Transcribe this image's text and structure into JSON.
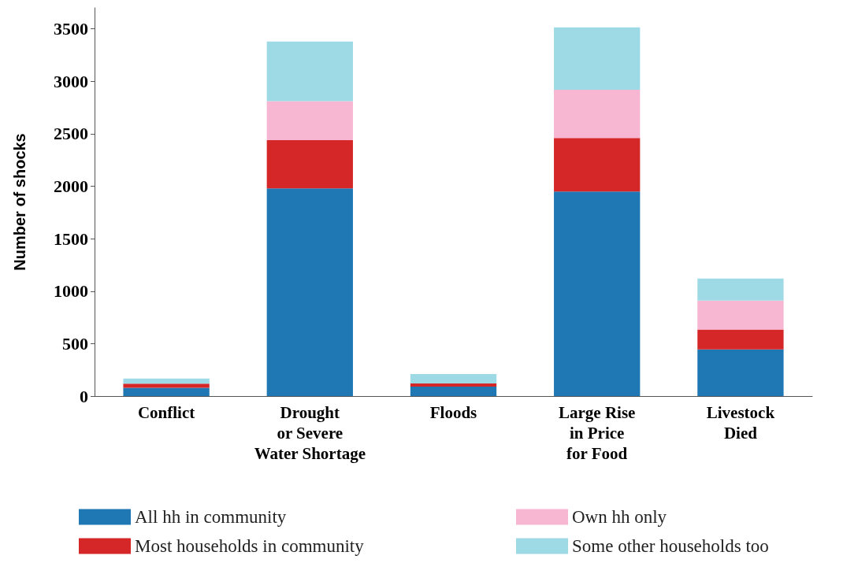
{
  "chart_data": {
    "type": "bar",
    "stacked": true,
    "ylabel": "Number of shocks",
    "categories": [
      "Conflict",
      "Drought\nor Severe\nWater Shortage",
      "Floods",
      "Large Rise\nin Price\nfor Food",
      "Livestock\nDied"
    ],
    "series": [
      {
        "name": "All hh in community",
        "color": "#1f77b4",
        "values": [
          78,
          1980,
          90,
          1950,
          445
        ]
      },
      {
        "name": "Most households in community",
        "color": "#d62728",
        "values": [
          41,
          460,
          30,
          510,
          190
        ]
      },
      {
        "name": "Own hh only",
        "color": "#f7b6d2",
        "values": [
          null,
          370,
          null,
          460,
          275
        ]
      },
      {
        "name": "Some other households too",
        "color": "#9edae5",
        "values": [
          48,
          570,
          90,
          595,
          210
        ]
      }
    ],
    "ylim": [
      0,
      3700
    ],
    "yticks": [
      0,
      500,
      1000,
      1500,
      2000,
      2500,
      3000,
      3500
    ],
    "grid": false,
    "legend": "bottom"
  }
}
